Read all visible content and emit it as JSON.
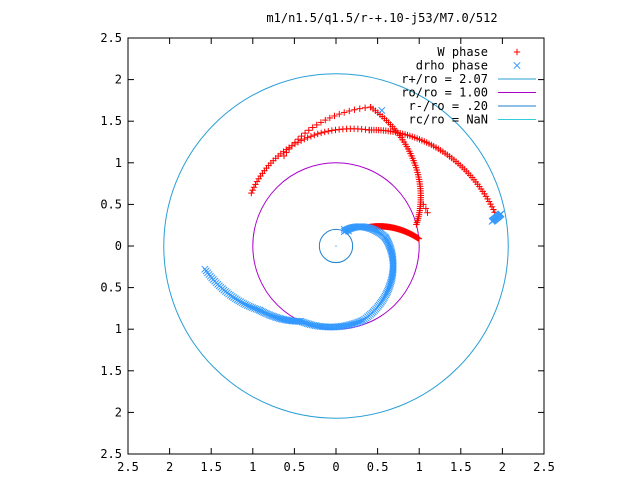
{
  "chart_data": {
    "type": "scatter",
    "title": "m1/n1.5/q1.5/r-+.10-j53/M7.0/512",
    "xlim": [
      -2.5,
      2.5
    ],
    "ylim": [
      -2.5,
      2.5
    ],
    "x_ticks": [
      -2.5,
      -2,
      -1.5,
      -1,
      -0.5,
      0,
      0.5,
      1,
      1.5,
      2,
      2.5
    ],
    "y_ticks": [
      -2.5,
      -2,
      -1.5,
      -1,
      -0.5,
      0,
      0.5,
      1,
      1.5,
      2,
      2.5
    ],
    "x_tick_labels": [
      "2.5",
      "2",
      "1.5",
      "1",
      "0.5",
      "0",
      "0.5",
      "1",
      "1.5",
      "2",
      "2.5"
    ],
    "y_tick_labels": [
      "2.5",
      "2",
      "1.5",
      "1",
      "0.5",
      "0",
      "0.5",
      "1",
      "1.5",
      "2",
      "2.5"
    ],
    "grid": false,
    "legend_position": "top-right",
    "series": [
      {
        "name": "W phase",
        "marker": "plus",
        "color": "#ff0000",
        "arms": [
          {
            "r0": 1.2,
            "theta0_deg": 148,
            "r1": 1.45,
            "theta1_deg": 74,
            "n": 42
          },
          {
            "r0": 1.45,
            "theta0_deg": 74,
            "r1": 1.95,
            "theta1_deg": 12,
            "n": 60
          },
          {
            "r0": 1.25,
            "theta0_deg": 120,
            "r1": 1.72,
            "theta1_deg": 76,
            "n": 22
          },
          {
            "r0": 1.72,
            "theta0_deg": 76,
            "r1": 1.0,
            "theta1_deg": 15,
            "n": 55
          },
          {
            "r0": 0.45,
            "theta0_deg": 30,
            "r1": 1.0,
            "theta1_deg": 5,
            "n": 70
          }
        ],
        "extra_points": [
          [
            1.08,
            0.45
          ],
          [
            1.05,
            0.5
          ],
          [
            1.1,
            0.4
          ]
        ]
      },
      {
        "name": "drho phase",
        "marker": "x",
        "color": "#3399ff",
        "arms": [
          {
            "r0": 0.2,
            "theta0_deg": 60,
            "r1": 0.6,
            "theta1_deg": 10,
            "n": 40
          },
          {
            "r0": 0.6,
            "theta0_deg": 10,
            "r1": 0.95,
            "theta1_deg": -70,
            "n": 60
          },
          {
            "r0": 0.95,
            "theta0_deg": -70,
            "r1": 1.0,
            "theta1_deg": -115,
            "n": 40
          },
          {
            "r0": 1.0,
            "theta0_deg": -115,
            "r1": 1.2,
            "theta1_deg": -140,
            "n": 30
          },
          {
            "r0": 1.2,
            "theta0_deg": -140,
            "r1": 1.6,
            "theta1_deg": -170,
            "n": 35
          },
          {
            "r0": 1.9,
            "theta0_deg": 9,
            "r1": 2.02,
            "theta1_deg": 11,
            "n": 14
          }
        ],
        "extra_points": [
          [
            0.55,
            1.63
          ],
          [
            0.15,
            0.18
          ],
          [
            0.1,
            0.2
          ]
        ]
      }
    ],
    "circles": [
      {
        "name": "r+/ro = 2.07",
        "r": 2.07,
        "color": "#2a9fd6"
      },
      {
        "name": "ro/ro = 1.00",
        "r": 1.0,
        "color": "#aa00cc"
      },
      {
        "name": "r-/ro = .20",
        "r": 0.2,
        "color": "#1f7fd0"
      },
      {
        "name": "rc/ro = NaN",
        "r": null,
        "color": "#33ccdd"
      }
    ]
  }
}
